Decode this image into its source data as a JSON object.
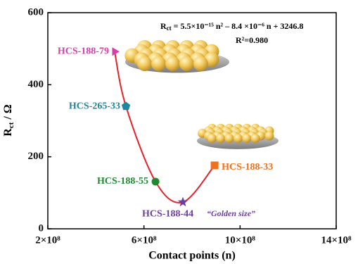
{
  "chart_data": {
    "type": "scatter",
    "x_label": "Contact points (n)",
    "y_label": {
      "main": "R",
      "sub": "ct",
      "rest": " / Ω"
    },
    "equation": {
      "main": "R",
      "sub": "ct",
      "rest": " = 5.5×10⁻¹⁵ n² – 8.4 ×10⁻⁶ n + 3246.8"
    },
    "r_squared": "R²=0.980",
    "annotation": "“Golden size”",
    "xlim": [
      200000000,
      1400000000
    ],
    "xticks": [
      {
        "value": 200000000,
        "label": "2×10⁸"
      },
      {
        "value": 600000000,
        "label": "6×10⁸"
      },
      {
        "value": 1000000000,
        "label": "10×10⁸"
      },
      {
        "value": 1400000000,
        "label": "14×10⁸"
      }
    ],
    "ylim": [
      0,
      600
    ],
    "yticks": [
      0,
      200,
      400,
      600
    ],
    "curve_color": "#e8202a",
    "points": [
      {
        "label": "HCS-188-79",
        "x": 478000000,
        "y": 492,
        "color": "#d63fa8",
        "marker": "triangle"
      },
      {
        "label": "HCS-265-33",
        "x": 525000000,
        "y": 340,
        "color": "#1f86a0",
        "marker": "pentagon"
      },
      {
        "label": "HCS-188-55",
        "x": 648000000,
        "y": 131,
        "color": "#1e8a32",
        "marker": "circle"
      },
      {
        "label": "HCS-188-44",
        "x": 762000000,
        "y": 74,
        "color": "#6b3fa0",
        "marker": "star"
      },
      {
        "label": "HCS-188-33",
        "x": 894000000,
        "y": 176,
        "color": "#f07020",
        "marker": "square"
      }
    ]
  }
}
